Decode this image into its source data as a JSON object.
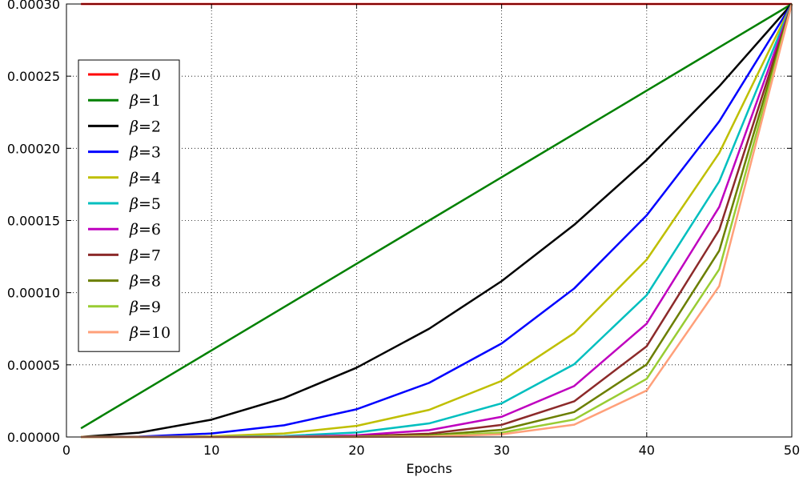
{
  "chart_data": {
    "type": "line",
    "title": "",
    "xlabel": "Epochs",
    "ylabel": "",
    "xlim": [
      0,
      50
    ],
    "ylim": [
      0,
      0.0003
    ],
    "x_ticks": [
      0,
      10,
      20,
      30,
      40,
      50
    ],
    "x_tick_labels": [
      "0",
      "10",
      "20",
      "30",
      "40",
      "50"
    ],
    "y_ticks": [
      0,
      5e-05,
      0.0001,
      0.00015,
      0.0002,
      0.00025,
      0.0003
    ],
    "y_tick_labels": [
      "0.00000",
      "0.00005",
      "0.00010",
      "0.00015",
      "0.00020",
      "0.00025",
      "0.00030"
    ],
    "grid": true,
    "legend_position": "upper-left",
    "x": [
      1,
      5,
      10,
      15,
      20,
      25,
      30,
      35,
      40,
      45,
      50
    ],
    "series": [
      {
        "name": "β=0",
        "symbol": "β",
        "label_suffix": "=0",
        "color": "#ff0000",
        "values": [
          0.0003,
          0.0003,
          0.0003,
          0.0003,
          0.0003,
          0.0003,
          0.0003,
          0.0003,
          0.0003,
          0.0003,
          0.0003
        ]
      },
      {
        "name": "β=1",
        "symbol": "β",
        "label_suffix": "=1",
        "color": "#008000",
        "values": [
          6e-06,
          3e-05,
          6e-05,
          9e-05,
          0.00012,
          0.00015,
          0.00018,
          0.00021,
          0.00024,
          0.00027,
          0.0003
        ]
      },
      {
        "name": "β=2",
        "symbol": "β",
        "label_suffix": "=2",
        "color": "#000000",
        "values": [
          1e-07,
          3e-06,
          1.2e-05,
          2.7e-05,
          4.8e-05,
          7.5e-05,
          0.000108,
          0.000147,
          0.000192,
          0.000243,
          0.0003
        ]
      },
      {
        "name": "β=3",
        "symbol": "β",
        "label_suffix": "=3",
        "color": "#0000ff",
        "values": [
          0.0,
          3e-07,
          2.4e-06,
          8.1e-06,
          1.92e-05,
          3.75e-05,
          6.48e-05,
          0.0001029,
          0.0001536,
          0.0002187,
          0.0003
        ]
      },
      {
        "name": "β=4",
        "symbol": "β",
        "label_suffix": "=4",
        "color": "#bfbf00",
        "values": [
          0.0,
          0.0,
          5e-07,
          2.4e-06,
          7.7e-06,
          1.88e-05,
          3.89e-05,
          7.2e-05,
          0.0001229,
          0.0001968,
          0.0003
        ]
      },
      {
        "name": "β=5",
        "symbol": "β",
        "label_suffix": "=5",
        "color": "#00bfbf",
        "values": [
          0.0,
          0.0,
          1e-07,
          7e-07,
          3.1e-06,
          9.4e-06,
          2.33e-05,
          5.04e-05,
          9.83e-05,
          0.0001771,
          0.0003
        ]
      },
      {
        "name": "β=6",
        "symbol": "β",
        "label_suffix": "=6",
        "color": "#bf00bf",
        "values": [
          0.0,
          0.0,
          0.0,
          2e-07,
          1.2e-06,
          4.7e-06,
          1.4e-05,
          3.53e-05,
          7.86e-05,
          0.0001594,
          0.0003
        ]
      },
      {
        "name": "β=7",
        "symbol": "β",
        "label_suffix": "=7",
        "color": "#8c2a2a",
        "values": [
          0.0,
          0.0,
          0.0,
          1e-07,
          5e-07,
          2.3e-06,
          8.4e-06,
          2.47e-05,
          6.29e-05,
          0.0001435,
          0.0003
        ]
      },
      {
        "name": "β=8",
        "symbol": "β",
        "label_suffix": "=8",
        "color": "#6b7f00",
        "values": [
          0.0,
          0.0,
          0.0,
          0.0,
          2e-07,
          1.2e-06,
          5e-06,
          1.73e-05,
          5.03e-05,
          0.0001291,
          0.0003
        ]
      },
      {
        "name": "β=9",
        "symbol": "β",
        "label_suffix": "=9",
        "color": "#99cc33",
        "values": [
          0.0,
          0.0,
          0.0,
          0.0,
          1e-07,
          6e-07,
          3e-06,
          1.21e-05,
          4.03e-05,
          0.0001162,
          0.0003
        ]
      },
      {
        "name": "β=10",
        "symbol": "β",
        "label_suffix": "=10",
        "color": "#ffa07a",
        "values": [
          0.0,
          0.0,
          0.0,
          0.0,
          0.0,
          3e-07,
          1.8e-06,
          8.5e-06,
          3.22e-05,
          0.0001046,
          0.0003
        ]
      }
    ]
  }
}
